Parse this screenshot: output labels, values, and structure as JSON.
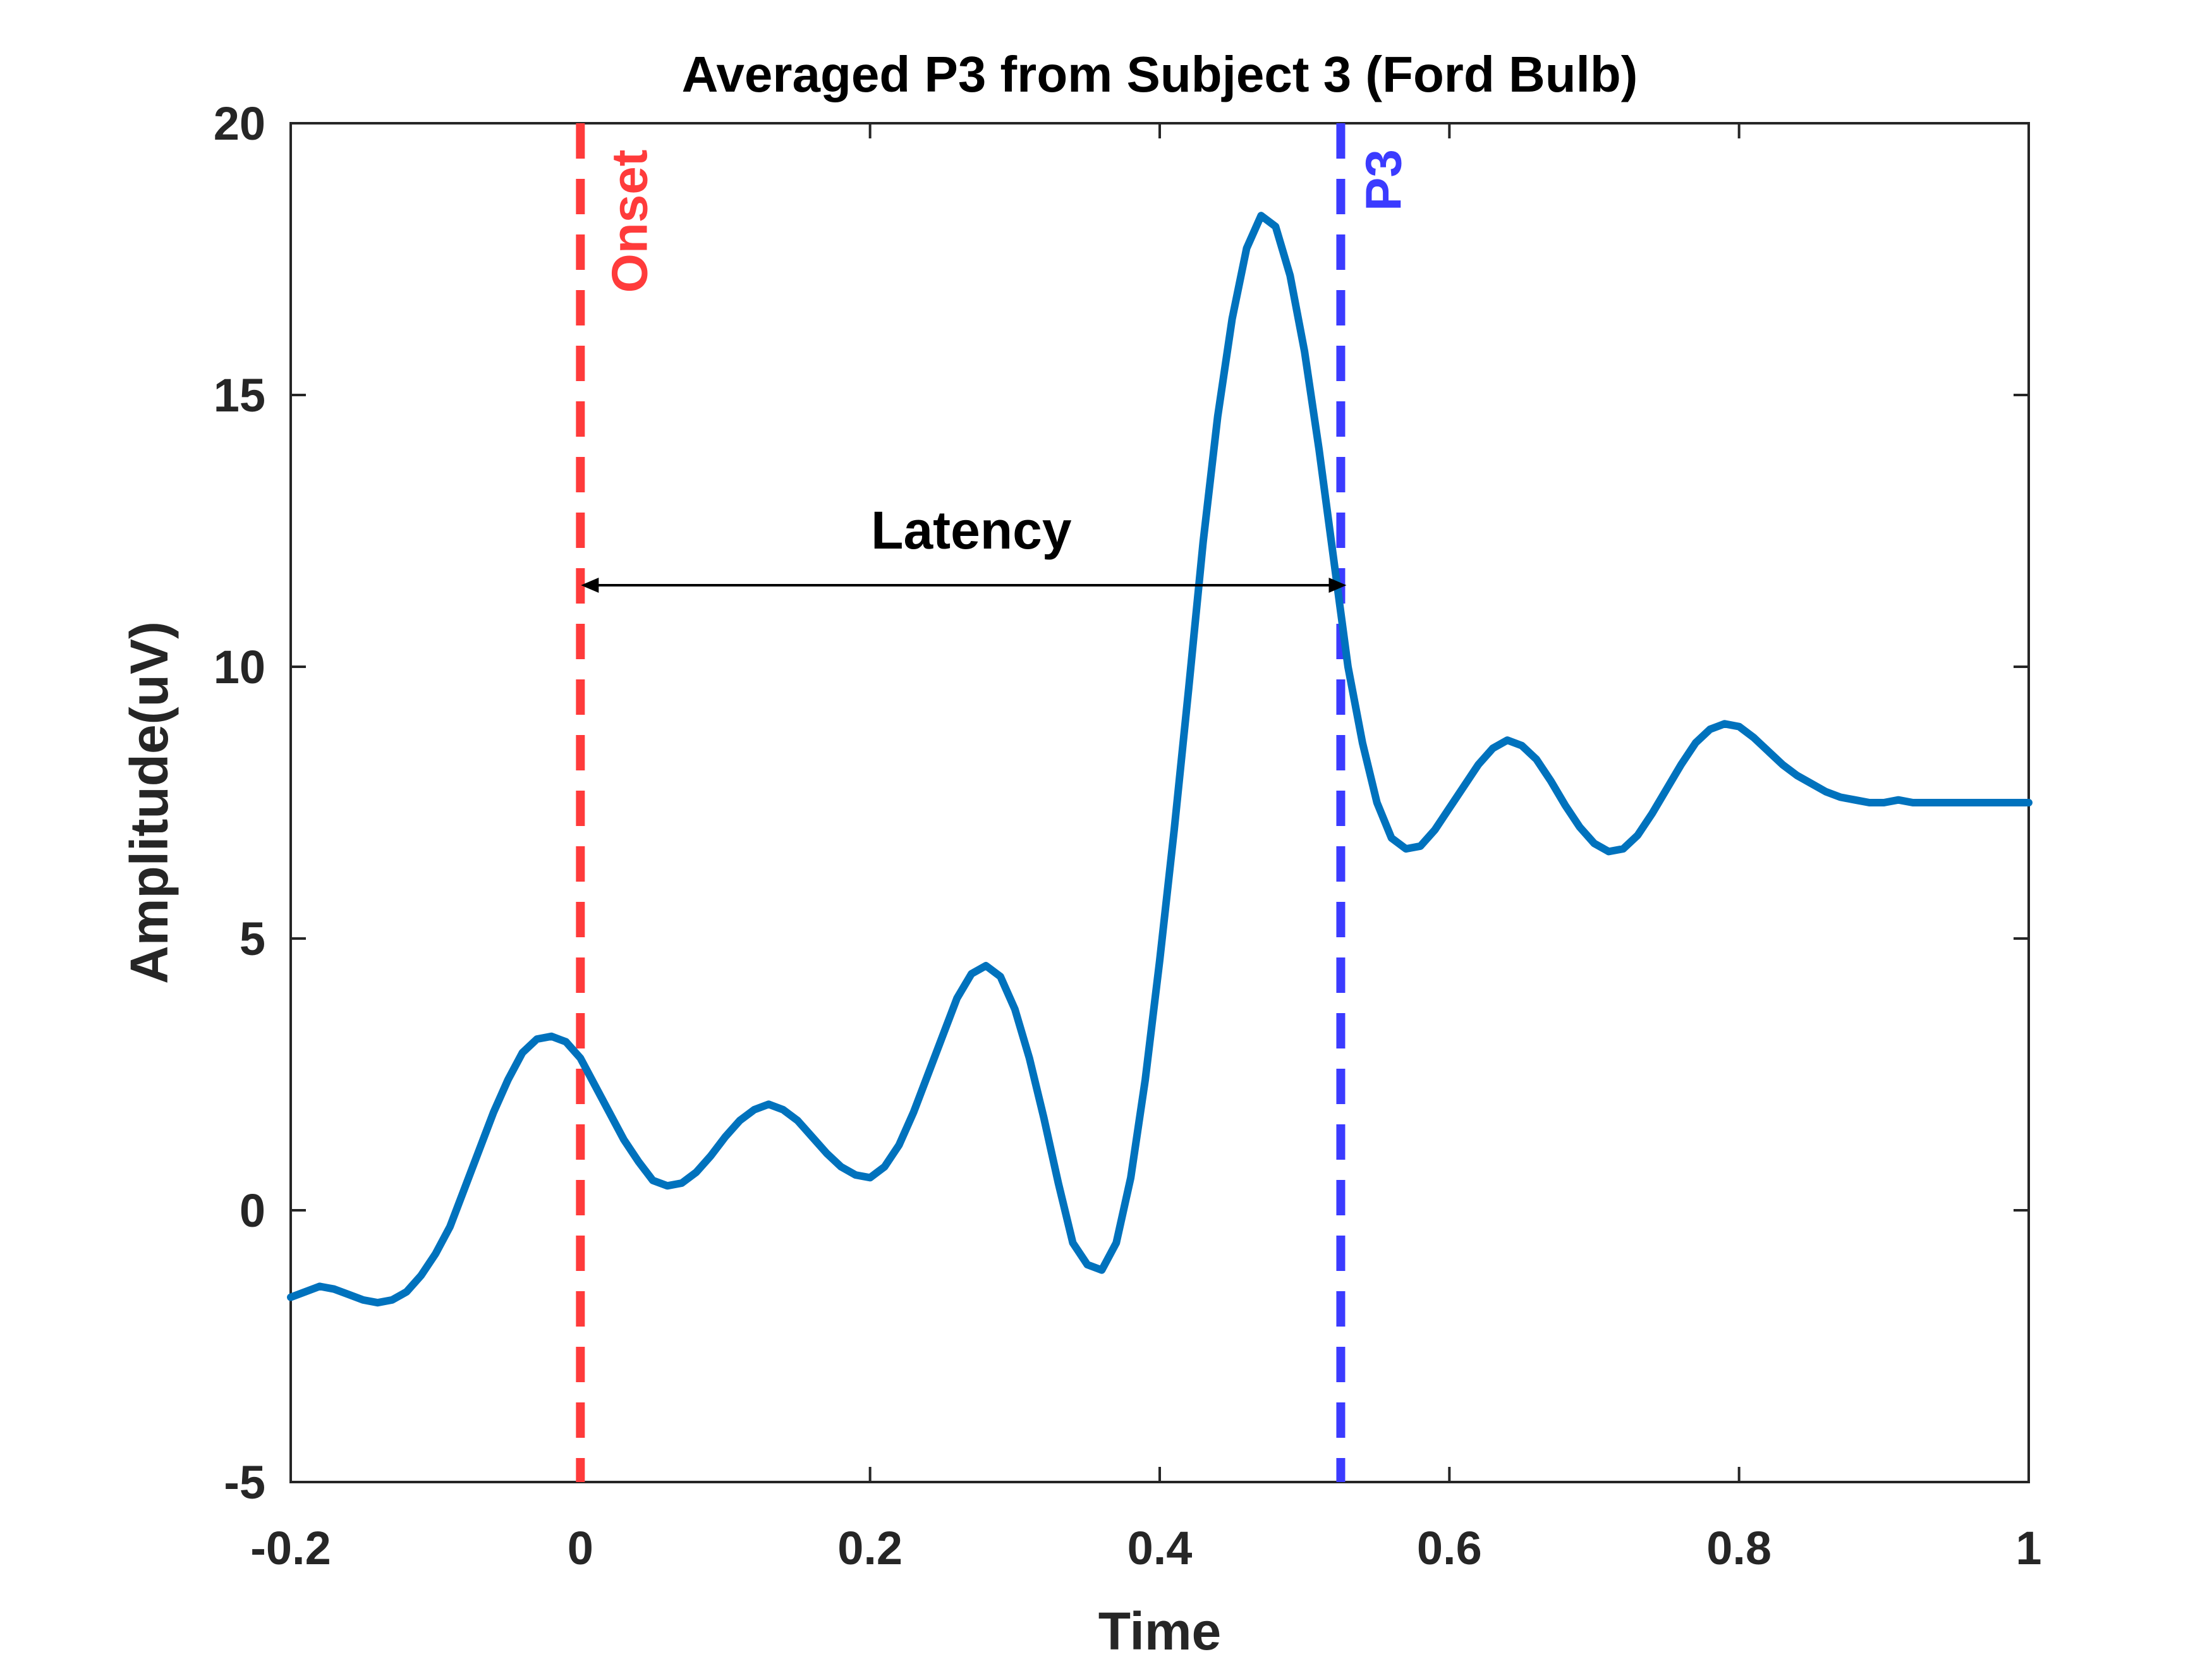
{
  "chart_data": {
    "type": "line",
    "title": "Averaged P3 from Subject 3 (Ford Bulb)",
    "xlabel": "Time",
    "ylabel": "Amplitude(uV)",
    "xlim": [
      -0.2,
      1.0
    ],
    "ylim": [
      -5,
      20
    ],
    "xticks": [
      -0.2,
      0,
      0.2,
      0.4,
      0.6,
      0.8,
      1.0
    ],
    "xtick_labels": [
      "-0.2",
      "0",
      "0.2",
      "0.4",
      "0.6",
      "0.8",
      "1"
    ],
    "yticks": [
      -5,
      0,
      5,
      10,
      15,
      20
    ],
    "ytick_labels": [
      "-5",
      "0",
      "5",
      "10",
      "15",
      "20"
    ],
    "grid": false,
    "series": [
      {
        "name": "Averaged P3",
        "color": "#0072BD",
        "x": [
          -0.2,
          -0.19,
          -0.18,
          -0.17,
          -0.16,
          -0.15,
          -0.14,
          -0.13,
          -0.12,
          -0.11,
          -0.1,
          -0.09,
          -0.08,
          -0.07,
          -0.06,
          -0.05,
          -0.04,
          -0.03,
          -0.02,
          -0.01,
          0.0,
          0.01,
          0.02,
          0.03,
          0.04,
          0.05,
          0.06,
          0.07,
          0.08,
          0.09,
          0.1,
          0.11,
          0.12,
          0.13,
          0.14,
          0.15,
          0.16,
          0.17,
          0.18,
          0.19,
          0.2,
          0.21,
          0.22,
          0.23,
          0.24,
          0.25,
          0.26,
          0.27,
          0.28,
          0.29,
          0.3,
          0.31,
          0.32,
          0.33,
          0.34,
          0.35,
          0.36,
          0.37,
          0.38,
          0.39,
          0.4,
          0.41,
          0.42,
          0.43,
          0.44,
          0.45,
          0.46,
          0.47,
          0.48,
          0.49,
          0.5,
          0.51,
          0.52,
          0.53,
          0.54,
          0.55,
          0.56,
          0.57,
          0.58,
          0.59,
          0.6,
          0.61,
          0.62,
          0.63,
          0.64,
          0.65,
          0.66,
          0.67,
          0.68,
          0.69,
          0.7,
          0.71,
          0.72,
          0.73,
          0.74,
          0.75,
          0.76,
          0.77,
          0.78,
          0.79,
          0.8,
          0.81,
          0.82,
          0.83,
          0.84,
          0.85,
          0.86,
          0.87,
          0.88,
          0.89,
          0.9,
          0.91,
          0.92,
          0.93,
          0.94,
          0.95,
          0.96,
          0.97,
          0.98,
          0.99,
          1.0
        ],
        "y": [
          -1.6,
          -1.5,
          -1.4,
          -1.45,
          -1.55,
          -1.65,
          -1.7,
          -1.65,
          -1.5,
          -1.2,
          -0.8,
          -0.3,
          0.4,
          1.1,
          1.8,
          2.4,
          2.9,
          3.15,
          3.2,
          3.1,
          2.8,
          2.3,
          1.8,
          1.3,
          0.9,
          0.55,
          0.45,
          0.5,
          0.7,
          1.0,
          1.35,
          1.65,
          1.85,
          1.95,
          1.85,
          1.65,
          1.35,
          1.05,
          0.8,
          0.65,
          0.6,
          0.8,
          1.2,
          1.8,
          2.5,
          3.2,
          3.9,
          4.35,
          4.5,
          4.3,
          3.7,
          2.8,
          1.7,
          0.5,
          -0.6,
          -1.0,
          -1.1,
          -0.6,
          0.6,
          2.4,
          4.6,
          7.0,
          9.6,
          12.3,
          14.6,
          16.4,
          17.7,
          18.3,
          18.1,
          17.2,
          15.8,
          14.0,
          12.0,
          10.0,
          8.6,
          7.5,
          6.85,
          6.65,
          6.7,
          7.0,
          7.4,
          7.8,
          8.2,
          8.5,
          8.65,
          8.55,
          8.3,
          7.9,
          7.45,
          7.05,
          6.75,
          6.6,
          6.65,
          6.9,
          7.3,
          7.75,
          8.2,
          8.6,
          8.85,
          8.95,
          8.9,
          8.7,
          8.45,
          8.2,
          8.0,
          7.85,
          7.7,
          7.6,
          7.55,
          7.5,
          7.5,
          7.55,
          7.5,
          7.5,
          7.5,
          7.5,
          7.5,
          7.5,
          7.5,
          7.5,
          7.5
        ]
      }
    ],
    "reference_lines": [
      {
        "name": "Onset",
        "x": 0.0,
        "color": "#FF3B3B",
        "style": "dashed"
      },
      {
        "name": "P3",
        "x": 0.525,
        "color": "#3B3BFF",
        "style": "dashed"
      }
    ],
    "annotations": [
      {
        "type": "double-arrow",
        "label": "Latency",
        "x_start": 0.0,
        "x_end": 0.525,
        "y": 11.5,
        "color": "#000000"
      }
    ],
    "labels": {
      "onset": "Onset",
      "p3": "P3",
      "latency": "Latency"
    }
  }
}
